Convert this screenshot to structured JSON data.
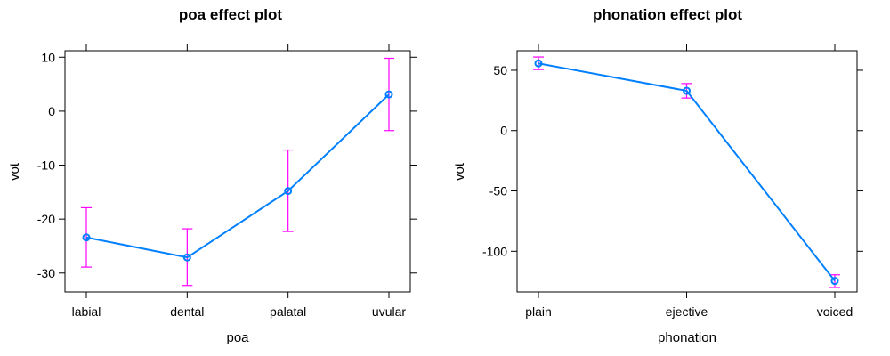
{
  "colors": {
    "line": "#0080ff",
    "error_bar": "#ff00ff",
    "frame": "#000000",
    "background": "#ffffff"
  },
  "chart_data": [
    {
      "type": "line",
      "title": "poa effect plot",
      "xlabel": "poa",
      "ylabel": "vot",
      "categories": [
        "labial",
        "dental",
        "palatal",
        "uvular"
      ],
      "series": [
        {
          "values": [
            -23.4,
            -27.1,
            -14.8,
            3.1
          ],
          "lower": [
            -28.9,
            -32.3,
            -22.3,
            -3.6
          ],
          "upper": [
            -17.9,
            -21.8,
            -7.2,
            9.8
          ]
        }
      ],
      "ylim": [
        -33.5,
        11.2
      ],
      "yticks": [
        -30,
        -20,
        -10,
        0,
        10
      ],
      "yticklabels": [
        "-30",
        "-20",
        "-10",
        "0",
        "10"
      ]
    },
    {
      "type": "line",
      "title": "phonation effect plot",
      "xlabel": "phonation",
      "ylabel": "vot",
      "categories": [
        "plain",
        "ejective",
        "voiced"
      ],
      "series": [
        {
          "values": [
            55.7,
            33.0,
            -124.6
          ],
          "lower": [
            50.6,
            27.0,
            -130.0
          ],
          "upper": [
            61.0,
            39.0,
            -119.5
          ]
        }
      ],
      "ylim": [
        -133.7,
        66.2
      ],
      "yticks": [
        -100,
        -50,
        0,
        50
      ],
      "yticklabels": [
        "-100",
        "-50",
        "0",
        "50"
      ]
    }
  ]
}
